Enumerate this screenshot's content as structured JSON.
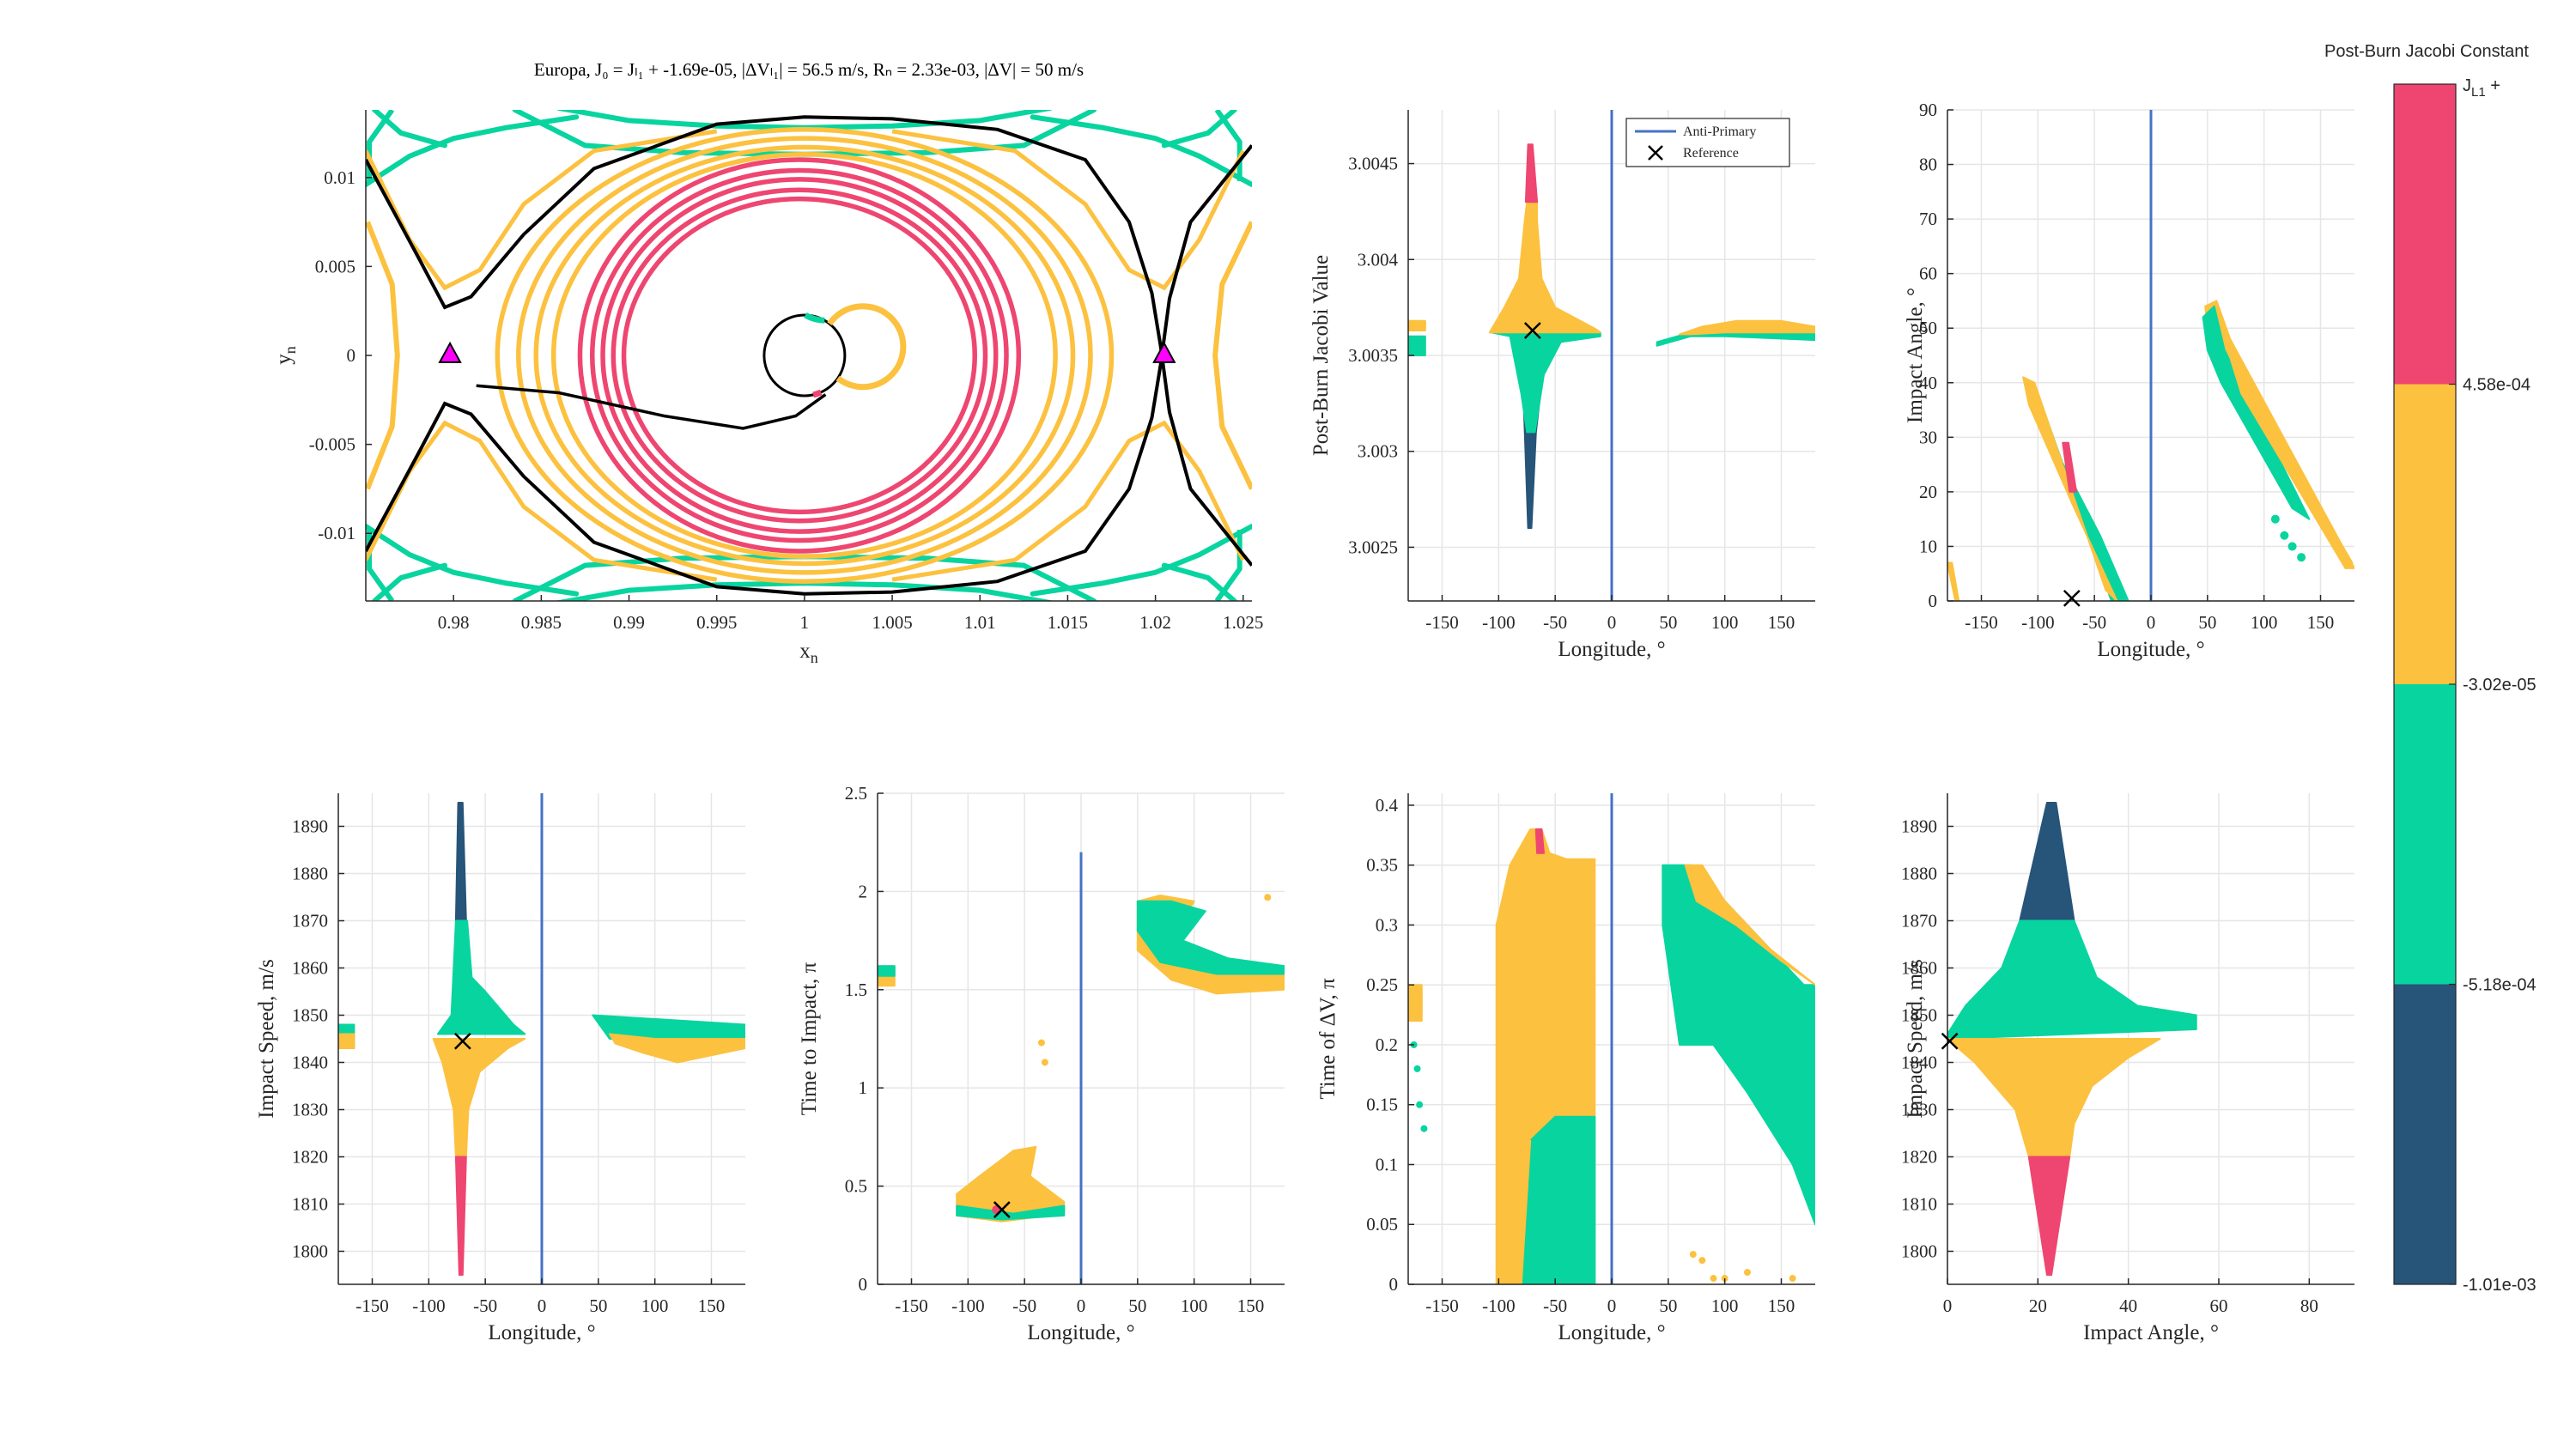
{
  "colors": {
    "pink": "#ee4670",
    "yellow": "#fcc13f",
    "green": "#08d49f",
    "navy": "#275479",
    "blue": "#4472c4",
    "magenta": "#ff00ff",
    "black": "#000000"
  },
  "colorbar": {
    "title": "Post-Burn Jacobi Constant",
    "top_label": "J",
    "top_sub": "L1",
    "top_suffix": " +",
    "ticks": [
      "4.58e-04",
      "-3.02e-05",
      "-5.18e-04",
      "-1.01e-03"
    ],
    "bands": [
      "pink",
      "yellow",
      "green",
      "navy"
    ]
  },
  "chart_data": [
    {
      "id": "orbit",
      "type": "line",
      "title": "Europa,     J₀ = Jₗ₁ + -1.69e-05,     |ΔVₗ₁| = 56.5 m/s,     Rₙ = 2.33e-03,     |ΔV| = 50 m/s",
      "xlabel": "x",
      "xlabel_sub": "n",
      "ylabel": "y",
      "ylabel_sub": "n",
      "xlim": [
        0.975,
        1.0255
      ],
      "ylim": [
        -0.0138,
        0.0138
      ],
      "xticks": [
        0.98,
        0.985,
        0.99,
        0.995,
        1,
        1.005,
        1.01,
        1.015,
        1.02,
        1.025
      ],
      "xticklabels": [
        "0.98",
        "0.985",
        "0.99",
        "0.995",
        "1",
        "1.005",
        "1.01",
        "1.015",
        "1.02",
        "1.025"
      ],
      "yticks": [
        0.01,
        0.005,
        0,
        -0.005,
        -0.01
      ],
      "yticklabels": [
        "0.01",
        "0.005",
        "0",
        "-0.005",
        "-0.01"
      ],
      "grid": false,
      "markers": [
        {
          "name": "L1",
          "x": 0.9798,
          "y": 0.0001,
          "symbol": "triangle"
        },
        {
          "name": "L2",
          "x": 1.0205,
          "y": 0.0001,
          "symbol": "triangle"
        }
      ],
      "series": [
        {
          "type": "pink_rings",
          "cx": 1.0,
          "cy": 0.0,
          "rx": [
            0.0125,
            0.0118,
            0.0112,
            0.0106,
            0.01
          ],
          "ry": [
            0.011,
            0.0104,
            0.0099,
            0.0093,
            0.0088
          ]
        },
        {
          "type": "yellow_rings",
          "cx": 1.0,
          "cy": 0.0,
          "rx": [
            0.0175,
            0.0163,
            0.0153,
            0.0143
          ],
          "ry": [
            0.0127,
            0.0122,
            0.0117,
            0.0113
          ]
        },
        {
          "type": "small_circle",
          "cx": 1.0,
          "cy": 0.0,
          "r": 0.0023
        }
      ]
    },
    {
      "id": "jacobi",
      "type": "scatter",
      "xlabel": "Longitude, °",
      "ylabel": "Post-Burn Jacobi Value",
      "xlim": [
        -180,
        180
      ],
      "ylim": [
        3.00222,
        3.00478
      ],
      "xticks": [
        -150,
        -100,
        -50,
        0,
        50,
        100,
        150
      ],
      "xticklabels": [
        "-150",
        "-100",
        "-50",
        "0",
        "50",
        "100",
        "150"
      ],
      "yticks": [
        3.0025,
        3.003,
        3.0035,
        3.004,
        3.0045
      ],
      "yticklabels": [
        "3.0025",
        "3.003",
        "3.0035",
        "3.004",
        "3.0045"
      ],
      "vline": 0,
      "legend": {
        "position": "top-right",
        "entries": [
          "Anti-Primary",
          "Reference"
        ]
      },
      "reference": {
        "x": -70,
        "y": 3.00363
      },
      "grid": true
    },
    {
      "id": "impact_angle",
      "type": "scatter",
      "xlabel": "Longitude, °",
      "ylabel": "Impact Angle, °",
      "xlim": [
        -180,
        180
      ],
      "ylim": [
        0,
        90
      ],
      "xticks": [
        -150,
        -100,
        -50,
        0,
        50,
        100,
        150
      ],
      "xticklabels": [
        "-150",
        "-100",
        "-50",
        "0",
        "50",
        "100",
        "150"
      ],
      "yticks": [
        0,
        10,
        20,
        30,
        40,
        50,
        60,
        70,
        80,
        90
      ],
      "yticklabels": [
        "0",
        "10",
        "20",
        "30",
        "40",
        "50",
        "60",
        "70",
        "80",
        "90"
      ],
      "vline": 0,
      "reference": {
        "x": -70,
        "y": 0.5
      },
      "grid": true
    },
    {
      "id": "speed_lon",
      "type": "scatter",
      "xlabel": "Longitude, °",
      "ylabel": "Impact Speed, m/s",
      "xlim": [
        -180,
        180
      ],
      "ylim": [
        1793,
        1897
      ],
      "xticks": [
        -150,
        -100,
        -50,
        0,
        50,
        100,
        150
      ],
      "xticklabels": [
        "-150",
        "-100",
        "-50",
        "0",
        "50",
        "100",
        "150"
      ],
      "yticks": [
        1800,
        1810,
        1820,
        1830,
        1840,
        1850,
        1860,
        1870,
        1880,
        1890
      ],
      "yticklabels": [
        "1800",
        "1810",
        "1820",
        "1830",
        "1840",
        "1850",
        "1860",
        "1870",
        "1880",
        "1890"
      ],
      "vline": 0,
      "reference": {
        "x": -70,
        "y": 1844.5
      },
      "grid": true
    },
    {
      "id": "tti",
      "type": "scatter",
      "xlabel": "Longitude, °",
      "ylabel": "Time to Impact, π",
      "xlim": [
        -180,
        180
      ],
      "ylim": [
        0,
        2.5
      ],
      "xticks": [
        -150,
        -100,
        -50,
        0,
        50,
        100,
        150
      ],
      "xticklabels": [
        "-150",
        "-100",
        "-50",
        "0",
        "50",
        "100",
        "150"
      ],
      "yticks": [
        0,
        0.5,
        1,
        1.5,
        2,
        2.5
      ],
      "yticklabels": [
        "0",
        "0.5",
        "1",
        "1.5",
        "2",
        "2.5"
      ],
      "vline": 0,
      "vline_top": 2.2,
      "reference": {
        "x": -70,
        "y": 0.38
      },
      "grid": true
    },
    {
      "id": "tdv",
      "type": "scatter",
      "xlabel": "Longitude, °",
      "ylabel": "Time of ΔV, π",
      "xlim": [
        -180,
        180
      ],
      "ylim": [
        0,
        0.41
      ],
      "xticks": [
        -150,
        -100,
        -50,
        0,
        50,
        100,
        150
      ],
      "xticklabels": [
        "-150",
        "-100",
        "-50",
        "0",
        "50",
        "100",
        "150"
      ],
      "yticks": [
        0,
        0.05,
        0.1,
        0.15,
        0.2,
        0.25,
        0.3,
        0.35,
        0.4
      ],
      "yticklabels": [
        "0",
        "0.05",
        "0.1",
        "0.15",
        "0.2",
        "0.25",
        "0.3",
        "0.35",
        "0.4"
      ],
      "vline": 0,
      "grid": true
    },
    {
      "id": "speed_angle",
      "type": "scatter",
      "xlabel": "Impact Angle, °",
      "ylabel": "Impact Speed, m/s",
      "xlim": [
        0,
        90
      ],
      "ylim": [
        1793,
        1897
      ],
      "xticks": [
        0,
        20,
        40,
        60,
        80
      ],
      "xticklabels": [
        "0",
        "20",
        "40",
        "60",
        "80"
      ],
      "yticks": [
        1800,
        1810,
        1820,
        1830,
        1840,
        1850,
        1860,
        1870,
        1880,
        1890
      ],
      "yticklabels": [
        "1800",
        "1810",
        "1820",
        "1830",
        "1840",
        "1850",
        "1860",
        "1870",
        "1880",
        "1890"
      ],
      "reference": {
        "x": 0.5,
        "y": 1844.5
      },
      "grid": true
    }
  ]
}
